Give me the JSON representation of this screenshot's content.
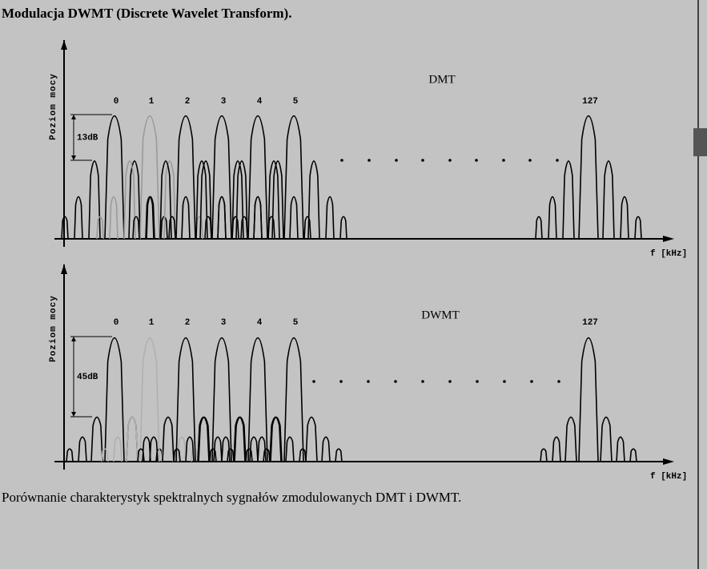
{
  "title": "Modulacja DWMT (Discrete Wavelet Transform).",
  "panels": [
    {
      "y_label": "Poziom mocy",
      "scheme": "DMT",
      "channels": [
        "0",
        "1",
        "2",
        "3",
        "4",
        "5",
        "127"
      ],
      "level_label": "13dB",
      "x_label": "f [kHz]"
    },
    {
      "y_label": "Poziom mocy",
      "scheme": "DWMT",
      "channels": [
        "0",
        "1",
        "2",
        "3",
        "4",
        "5",
        "127"
      ],
      "level_label": "45dB",
      "x_label": "f [kHz]"
    }
  ],
  "caption": "Porównanie charakterystyk spektralnych sygnałów zmodulowanych DMT i DWMT."
}
